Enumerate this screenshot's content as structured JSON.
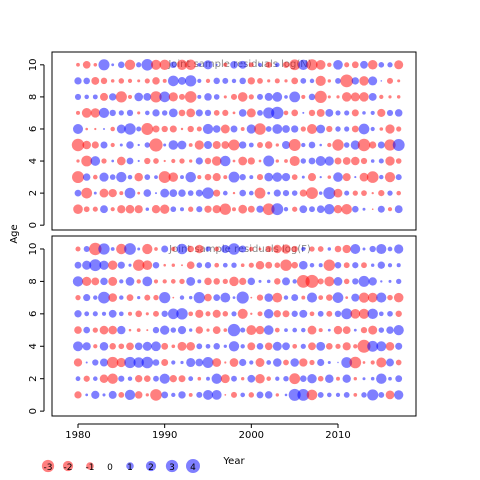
{
  "chart_data": {
    "type": "scatter",
    "ylabel": "Age",
    "xlabel": "Year",
    "xlim": [
      1977,
      2019
    ],
    "x_ticks": [
      "1980",
      "1990",
      "2000",
      "2010"
    ],
    "y_ticks": [
      "0",
      "2",
      "4",
      "6",
      "8",
      "10"
    ],
    "colors": {
      "positive": "#0000ff",
      "negative": "#ff0000",
      "alpha": 0.5
    },
    "years_range": [
      1980,
      2017
    ],
    "ages_range": [
      1,
      10
    ],
    "panels": [
      {
        "title": "Joint sample residuals log(N)",
        "ylim": [
          -0.3,
          10.8
        ],
        "seed": 7
      },
      {
        "title": "Joint sample residuals log(F)",
        "ylim": [
          -0.3,
          10.8
        ],
        "seed": 13
      }
    ],
    "legend": {
      "values": [
        -3,
        -2,
        -1,
        0,
        1,
        2,
        3,
        4
      ],
      "labels": [
        "-3",
        "-2",
        "-1",
        "0",
        "1",
        "2",
        "3",
        "4"
      ]
    }
  }
}
